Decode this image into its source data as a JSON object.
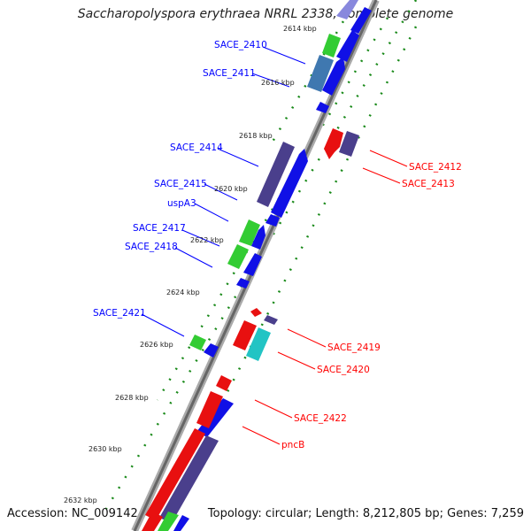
{
  "title": "Saccharopolyspora erythraea NRRL 2338, complete genome",
  "footer": {
    "accession": "Accession: NC_009142",
    "topology": "Topology: circular; Length: 8,212,805 bp; Genes: 7,259"
  },
  "colors": {
    "forward_label": "#0000ff",
    "reverse_label": "#ff0000",
    "gene_blue": "#1010e6",
    "gene_red": "#e81010",
    "gene_green": "#33cc33",
    "gene_purple": "#4a3f8c",
    "gene_cyan": "#22c4c4",
    "gene_steel": "#3f78b0",
    "backbone": "#888888",
    "tick_dot": "#1a8a1a"
  },
  "ticks": [
    "2614 kbp",
    "2616 kbp",
    "2618 kbp",
    "2620 kbp",
    "2622 kbp",
    "2624 kbp",
    "2626 kbp",
    "2628 kbp",
    "2630 kbp",
    "2632 kbp"
  ],
  "forward_labels": [
    "SACE_2410",
    "SACE_2411",
    "SACE_2414",
    "SACE_2415",
    "uspA3",
    "SACE_2417",
    "SACE_2418",
    "SACE_2421"
  ],
  "reverse_labels": [
    "SACE_2412",
    "SACE_2413",
    "SACE_2419",
    "SACE_2420",
    "SACE_2422",
    "pncB"
  ]
}
